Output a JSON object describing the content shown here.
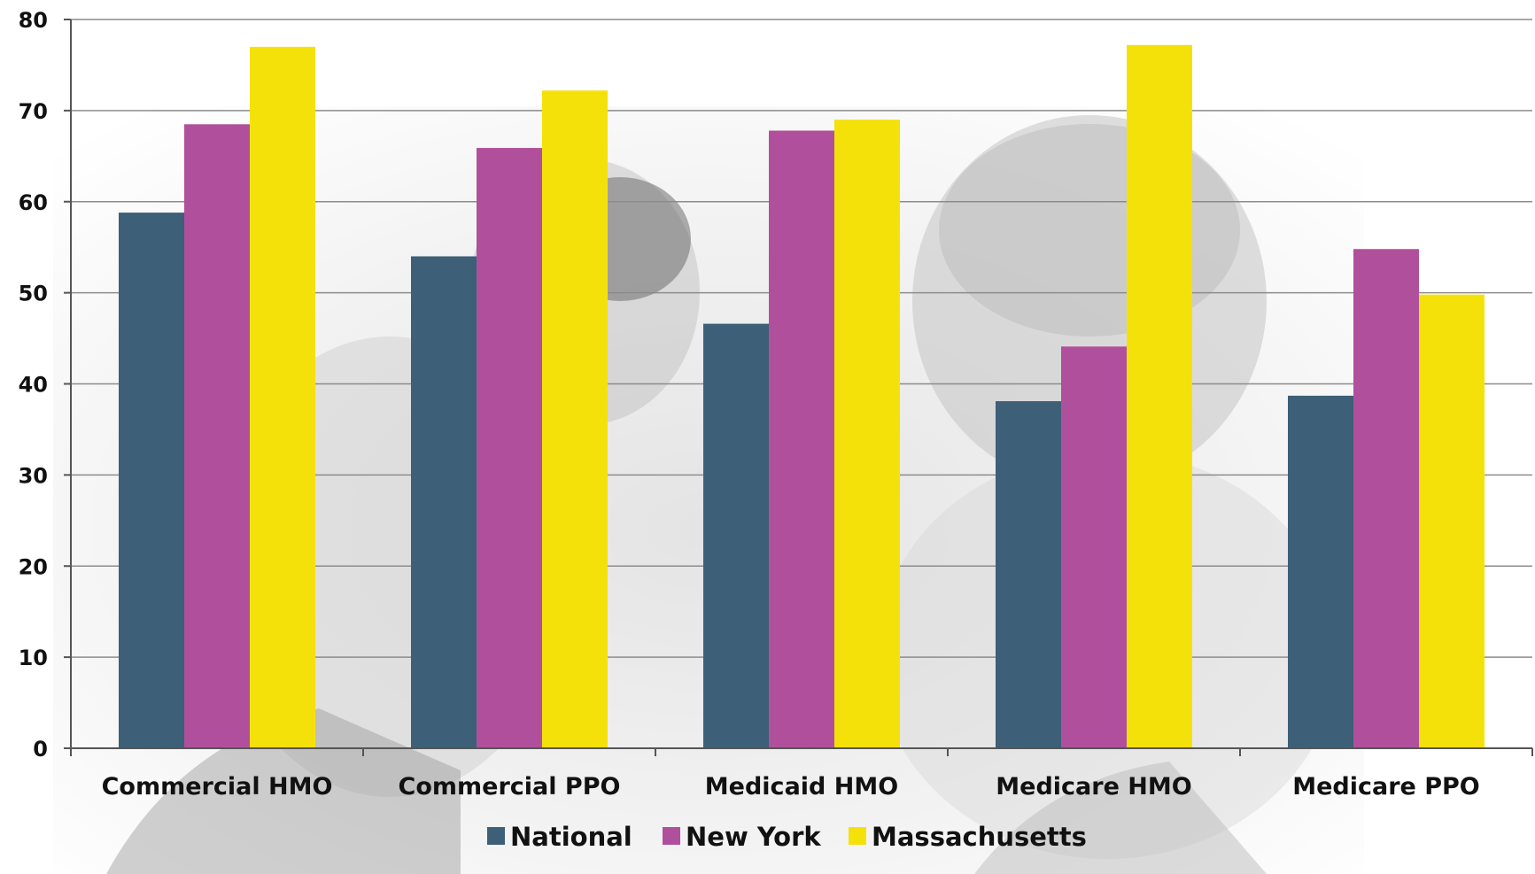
{
  "chart_data": {
    "type": "bar",
    "title": "",
    "xlabel": "",
    "ylabel": "",
    "ylim": [
      0,
      80
    ],
    "yticks": [
      0,
      10,
      20,
      30,
      40,
      50,
      60,
      70,
      80
    ],
    "categories": [
      "Commercial HMO",
      "Commercial PPO",
      "Medicaid HMO",
      "Medicare HMO",
      "Medicare PPO"
    ],
    "series": [
      {
        "name": "National",
        "color": "#3d5f78",
        "values": [
          58.8,
          54.0,
          46.6,
          38.1,
          38.7
        ]
      },
      {
        "name": "New York",
        "color": "#b0509c",
        "values": [
          68.5,
          65.9,
          67.8,
          44.1,
          54.8
        ]
      },
      {
        "name": "Massachusetts",
        "color": "#f5e10a",
        "values": [
          77.0,
          72.2,
          69.0,
          77.2,
          49.8
        ]
      }
    ],
    "grid": true,
    "legend_position": "bottom"
  }
}
